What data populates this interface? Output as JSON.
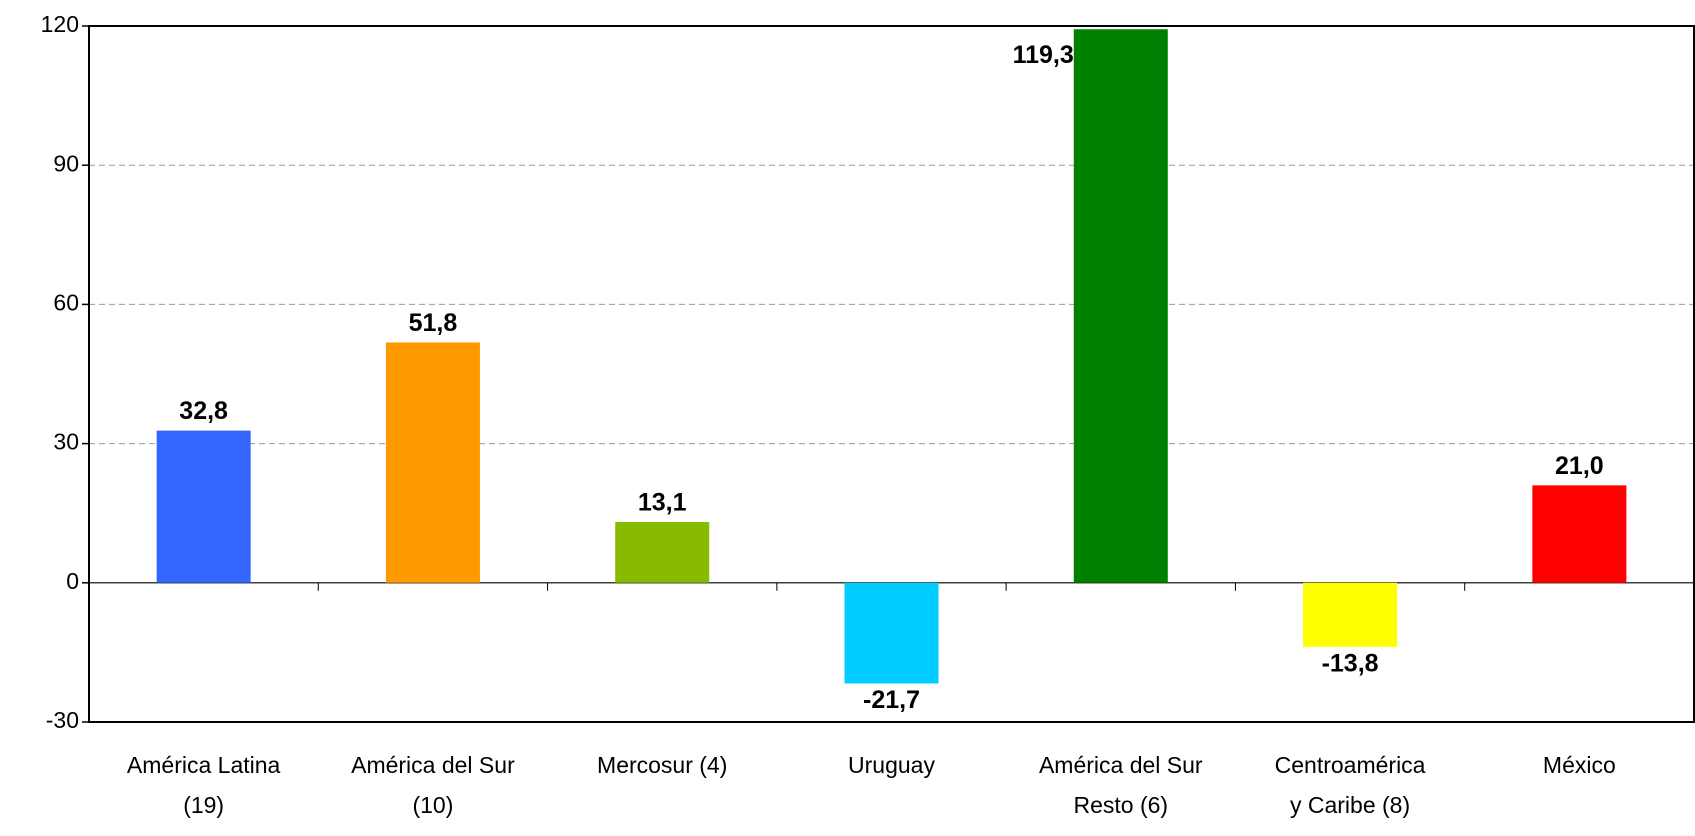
{
  "chart_data": {
    "type": "bar",
    "categories": [
      [
        "América Latina",
        "(19)"
      ],
      [
        "América del Sur",
        "(10)"
      ],
      [
        "Mercosur (4)"
      ],
      [
        "Uruguay"
      ],
      [
        "América del Sur",
        "Resto (6)"
      ],
      [
        "Centroamérica",
        "y Caribe (8)"
      ],
      [
        "México"
      ]
    ],
    "values": [
      32.8,
      51.8,
      13.1,
      -21.7,
      119.3,
      -13.8,
      21.0
    ],
    "value_labels": [
      "32,8",
      "51,8",
      "13,1",
      "-21,7",
      "119,3",
      "-13,8",
      "21,0"
    ],
    "colors": [
      "#3366ff",
      "#ff9900",
      "#88bb00",
      "#00ccff",
      "#008000",
      "#ffff00",
      "#ff0000"
    ],
    "ylim": [
      -30,
      120
    ],
    "yticks": [
      -30,
      0,
      30,
      60,
      90,
      120
    ],
    "grid": true
  }
}
